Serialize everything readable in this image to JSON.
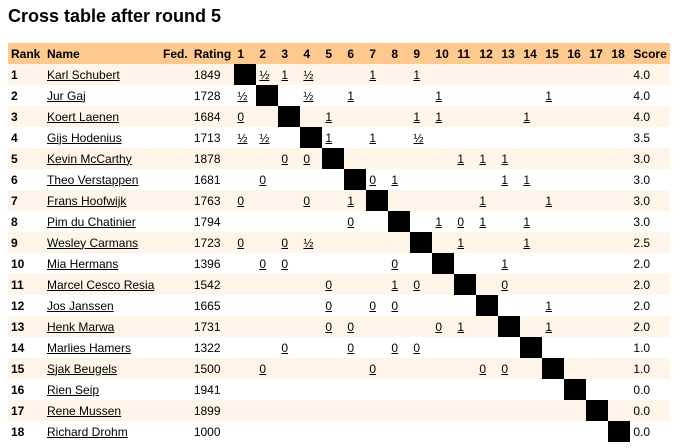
{
  "title": "Cross table after round 5",
  "table": {
    "header": [
      "Rank",
      "Name",
      "Fed.",
      "Rating",
      "1",
      "2",
      "3",
      "4",
      "5",
      "6",
      "7",
      "8",
      "9",
      "10",
      "11",
      "12",
      "13",
      "14",
      "15",
      "16",
      "17",
      "18",
      "Score"
    ],
    "rows": [
      {
        "rank": "1",
        "name": "Karl Schubert",
        "rating": "1849",
        "results": [
          null,
          "½",
          "1",
          "½",
          null,
          null,
          "1",
          null,
          "1",
          null,
          null,
          null,
          null,
          null,
          null,
          null,
          null,
          null
        ],
        "score": "4.0"
      },
      {
        "rank": "2",
        "name": "Jur Gaj",
        "rating": "1728",
        "results": [
          "½",
          null,
          null,
          "½",
          null,
          "1",
          null,
          null,
          null,
          "1",
          null,
          null,
          null,
          null,
          "1",
          null,
          null,
          null
        ],
        "score": "4.0"
      },
      {
        "rank": "3",
        "name": "Koert Laenen",
        "rating": "1684",
        "results": [
          "0",
          null,
          null,
          null,
          "1",
          null,
          null,
          null,
          "1",
          "1",
          null,
          null,
          null,
          "1",
          null,
          null,
          null,
          null
        ],
        "score": "4.0"
      },
      {
        "rank": "4",
        "name": "Gijs Hodenius",
        "rating": "1713",
        "results": [
          "½",
          "½",
          null,
          null,
          "1",
          null,
          "1",
          null,
          "½",
          null,
          null,
          null,
          null,
          null,
          null,
          null,
          null,
          null
        ],
        "score": "3.5"
      },
      {
        "rank": "5",
        "name": "Kevin McCarthy",
        "rating": "1878",
        "results": [
          null,
          null,
          "0",
          "0",
          null,
          null,
          null,
          null,
          null,
          null,
          "1",
          "1",
          "1",
          null,
          null,
          null,
          null,
          null
        ],
        "score": "3.0"
      },
      {
        "rank": "6",
        "name": "Theo Verstappen",
        "rating": "1681",
        "results": [
          null,
          "0",
          null,
          null,
          null,
          null,
          "0",
          "1",
          null,
          null,
          null,
          null,
          "1",
          "1",
          null,
          null,
          null,
          null
        ],
        "score": "3.0"
      },
      {
        "rank": "7",
        "name": "Frans Hoofwijk",
        "rating": "1763",
        "results": [
          "0",
          null,
          null,
          "0",
          null,
          "1",
          null,
          null,
          null,
          null,
          null,
          "1",
          null,
          null,
          "1",
          null,
          null,
          null
        ],
        "score": "3.0"
      },
      {
        "rank": "8",
        "name": "Pim du Chatinier",
        "rating": "1794",
        "results": [
          null,
          null,
          null,
          null,
          null,
          "0",
          null,
          null,
          null,
          "1",
          "0",
          "1",
          null,
          "1",
          null,
          null,
          null,
          null
        ],
        "score": "3.0"
      },
      {
        "rank": "9",
        "name": "Wesley Carmans",
        "rating": "1723",
        "results": [
          "0",
          null,
          "0",
          "½",
          null,
          null,
          null,
          null,
          null,
          null,
          "1",
          null,
          null,
          "1",
          null,
          null,
          null,
          null
        ],
        "score": "2.5"
      },
      {
        "rank": "10",
        "name": "Mia Hermans",
        "rating": "1396",
        "results": [
          null,
          "0",
          "0",
          null,
          null,
          null,
          null,
          "0",
          null,
          null,
          null,
          null,
          "1",
          null,
          null,
          null,
          null,
          null
        ],
        "score": "2.0"
      },
      {
        "rank": "11",
        "name": "Marcel Cesco Resia",
        "rating": "1542",
        "results": [
          null,
          null,
          null,
          null,
          "0",
          null,
          null,
          "1",
          "0",
          null,
          null,
          null,
          "0",
          null,
          null,
          null,
          null,
          null
        ],
        "score": "2.0"
      },
      {
        "rank": "12",
        "name": "Jos Janssen",
        "rating": "1665",
        "results": [
          null,
          null,
          null,
          null,
          "0",
          null,
          "0",
          "0",
          null,
          null,
          null,
          null,
          null,
          null,
          "1",
          null,
          null,
          null
        ],
        "score": "2.0"
      },
      {
        "rank": "13",
        "name": "Henk Marwa",
        "rating": "1731",
        "results": [
          null,
          null,
          null,
          null,
          "0",
          "0",
          null,
          null,
          null,
          "0",
          "1",
          null,
          null,
          null,
          "1",
          null,
          null,
          null
        ],
        "score": "2.0"
      },
      {
        "rank": "14",
        "name": "Marlies Hamers",
        "rating": "1322",
        "results": [
          null,
          null,
          "0",
          null,
          null,
          "0",
          null,
          "0",
          "0",
          null,
          null,
          null,
          null,
          null,
          null,
          null,
          null,
          null
        ],
        "score": "1.0"
      },
      {
        "rank": "15",
        "name": "Sjak Beugels",
        "rating": "1500",
        "results": [
          null,
          "0",
          null,
          null,
          null,
          null,
          "0",
          null,
          null,
          null,
          null,
          "0",
          "0",
          null,
          null,
          null,
          null,
          null
        ],
        "score": "1.0"
      },
      {
        "rank": "16",
        "name": "Rien Seip",
        "rating": "1941",
        "results": [
          null,
          null,
          null,
          null,
          null,
          null,
          null,
          null,
          null,
          null,
          null,
          null,
          null,
          null,
          null,
          null,
          null,
          null
        ],
        "score": "0.0"
      },
      {
        "rank": "17",
        "name": "Rene Mussen",
        "rating": "1899",
        "results": [
          null,
          null,
          null,
          null,
          null,
          null,
          null,
          null,
          null,
          null,
          null,
          null,
          null,
          null,
          null,
          null,
          null,
          null
        ],
        "score": "0.0"
      },
      {
        "rank": "18",
        "name": "Richard Drohm",
        "rating": "1000",
        "results": [
          null,
          null,
          null,
          null,
          null,
          null,
          null,
          null,
          null,
          null,
          null,
          null,
          null,
          null,
          null,
          null,
          null,
          null
        ],
        "score": "0.0"
      }
    ]
  }
}
